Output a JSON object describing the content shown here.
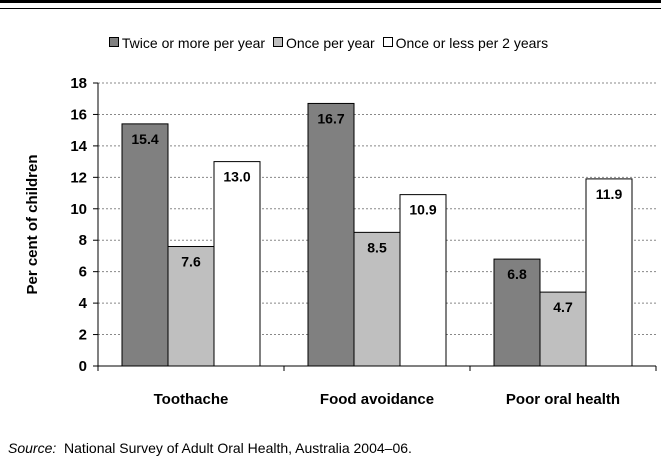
{
  "chart_data": {
    "type": "bar",
    "categories": [
      "Toothache",
      "Food avoidance",
      "Poor oral health"
    ],
    "series": [
      {
        "name": "Twice or more per year",
        "values": [
          15.4,
          16.7,
          6.8
        ],
        "color": "#808080"
      },
      {
        "name": "Once per year",
        "values": [
          7.6,
          8.5,
          4.7
        ],
        "color": "#bfbfbf"
      },
      {
        "name": "Once or less per 2 years",
        "values": [
          13.0,
          10.9,
          11.9
        ],
        "color": "#ffffff"
      }
    ],
    "ylabel": "Per cent of children",
    "ylim": [
      0,
      18
    ],
    "yticks": [
      0,
      2,
      4,
      6,
      8,
      10,
      12,
      14,
      16,
      18
    ],
    "grid": true,
    "legend": "top",
    "data_labels": true
  },
  "source": {
    "label": "Source:",
    "text": "National Survey of Adult Oral Health, Australia 2004–06."
  }
}
